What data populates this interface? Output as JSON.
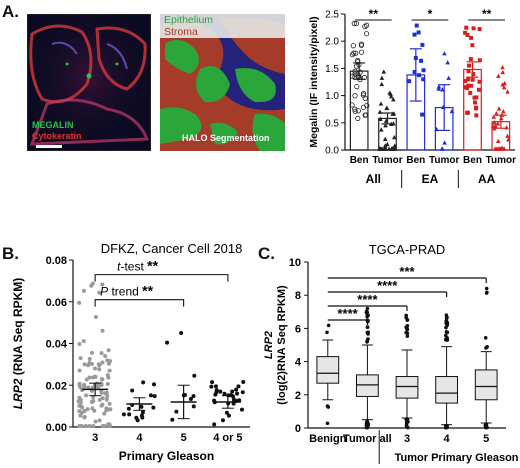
{
  "panel_labels": {
    "a": "A.",
    "b": "B.",
    "c": "C."
  },
  "panel_a": {
    "micro_labels": {
      "megalin": "MEGALIN",
      "cytokeratin": "Cytokeratin"
    },
    "halo_labels": {
      "epithelium": "Epithelium",
      "stroma": "Stroma",
      "segmentation": "HALO Segmentation"
    },
    "colors": {
      "megalin": "#27c447",
      "cytokeratin": "#e23131",
      "epithelium": "#2aa63a",
      "stroma": "#a53c2a",
      "background": "#24227a"
    }
  },
  "chart_data": [
    {
      "panel": "A",
      "type": "bar",
      "ylabel": "Megalin (IF intensity/pixel)",
      "ylim": [
        0,
        2.5
      ],
      "yticks": [
        "0.0",
        "0.5",
        "1.0",
        "1.5",
        "2.0",
        "2.5"
      ],
      "categories": [
        "Ben",
        "Tumor",
        "Ben",
        "Tumor",
        "Ben",
        "Tumor"
      ],
      "groups": [
        "All",
        "EA",
        "AA"
      ],
      "values": [
        1.45,
        0.58,
        1.38,
        0.78,
        1.48,
        0.52
      ],
      "errors": [
        0.15,
        0.1,
        0.48,
        0.42,
        0.14,
        0.12
      ],
      "colors": [
        "#222222",
        "#222222",
        "#1f2fd6",
        "#1f2fd6",
        "#d62020",
        "#d62020"
      ],
      "significance": [
        "**",
        "*",
        "**"
      ]
    },
    {
      "panel": "B",
      "type": "scatter",
      "title": "DFKZ, Cancer Cell 2018",
      "xlabel": "Primary Gleason",
      "ylabel_italic": "LRP2",
      "ylabel_rest": " (RNA Seq RPKM)",
      "categories": [
        "3",
        "4",
        "5",
        "4 or 5"
      ],
      "ylim": [
        0,
        0.08
      ],
      "yticks": [
        "0.00",
        "0.02",
        "0.04",
        "0.06",
        "0.08"
      ],
      "means": [
        0.018,
        0.011,
        0.012,
        0.012
      ],
      "errors": [
        0.003,
        0.003,
        0.008,
        0.003
      ],
      "tests": [
        {
          "label_italic": "t",
          "label_rest": "-test",
          "stars": "**"
        },
        {
          "label_italic": "P",
          "label_rest": " trend",
          "stars": "**"
        }
      ]
    },
    {
      "panel": "C",
      "type": "box",
      "title": "TGCA-PRAD",
      "ylabel_italic": "LRP2",
      "ylabel_rest": "(log(2)RNA Seq RPKM)",
      "categories": [
        "Benign",
        "Tumor all",
        "3",
        "4",
        "5"
      ],
      "group_label": "Tumor Primary Gleason",
      "ylim": [
        0,
        10
      ],
      "yticks": [
        "0",
        "2",
        "4",
        "6",
        "8",
        "10"
      ],
      "boxes": [
        {
          "min": 1.7,
          "q1": 2.7,
          "median": 3.3,
          "q3": 4.3,
          "max": 5.3
        },
        {
          "min": 0.5,
          "q1": 1.9,
          "median": 2.6,
          "q3": 3.2,
          "max": 5.0
        },
        {
          "min": 0.6,
          "q1": 1.8,
          "median": 2.5,
          "q3": 3.1,
          "max": 4.7
        },
        {
          "min": 0.2,
          "q1": 1.5,
          "median": 2.1,
          "q3": 3.1,
          "max": 4.9
        },
        {
          "min": 0.3,
          "q1": 1.7,
          "median": 2.5,
          "q3": 3.5,
          "max": 4.6
        }
      ],
      "comparisons": [
        "****",
        "****",
        "****",
        "***"
      ]
    }
  ]
}
